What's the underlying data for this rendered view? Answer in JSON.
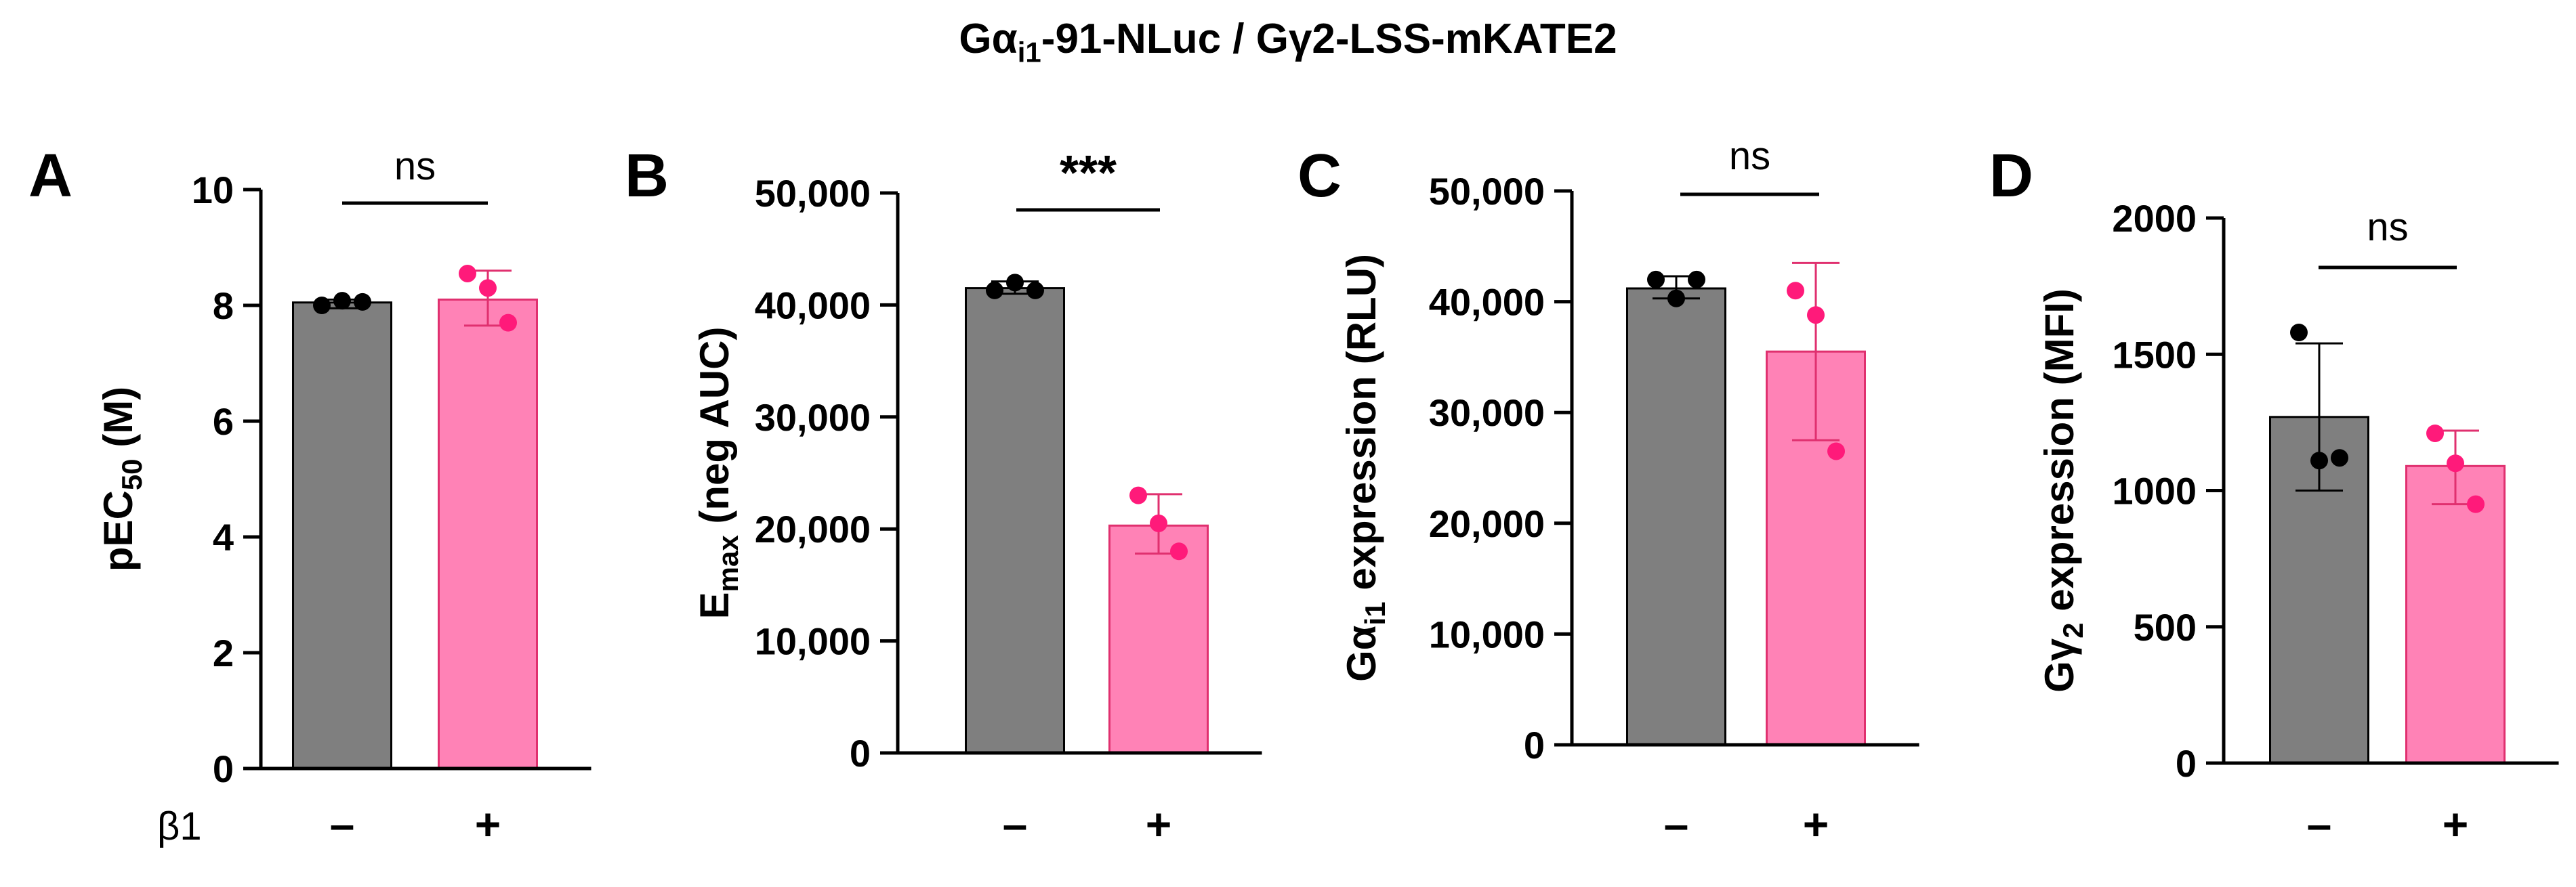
{
  "figure_title": {
    "prefix": "Gα",
    "sub": "i1",
    "suffix": "-91-NLuc / Gγ2-LSS-mKATE2"
  },
  "colors": {
    "minus": "#7f7f7f",
    "plus": "#ff82b6",
    "plus_edge": "#e0306f",
    "minus_dot": "#000000",
    "plus_dot": "#ff1a7a"
  },
  "row_label": "β1",
  "chart_data": [
    {
      "panel": "A",
      "type": "bar",
      "ylabel": {
        "main": "pEC",
        "sub": "50",
        "tail": " (M)"
      },
      "ylim": [
        0,
        10
      ],
      "ticks": [
        0,
        2,
        4,
        6,
        8,
        10
      ],
      "tick_labels": [
        "0",
        "2",
        "4",
        "6",
        "8",
        "10"
      ],
      "categories": [
        "–",
        "+"
      ],
      "series": [
        {
          "name": "–",
          "value": 8.05,
          "error": [
            7.95,
            8.1
          ],
          "points": [
            8.0,
            8.08,
            8.06
          ]
        },
        {
          "name": "+",
          "value": 8.1,
          "error": [
            7.65,
            8.6
          ],
          "points": [
            8.55,
            8.3,
            7.7
          ]
        }
      ],
      "significance": "ns"
    },
    {
      "panel": "B",
      "type": "bar",
      "ylabel": {
        "main": "E",
        "sub": "max",
        "tail": " (neg AUC)"
      },
      "ylim": [
        0,
        50000
      ],
      "ticks": [
        0,
        10000,
        20000,
        30000,
        40000,
        50000
      ],
      "tick_labels": [
        "0",
        "10,000",
        "20,000",
        "30,000",
        "40,000",
        "50,000"
      ],
      "categories": [
        "–",
        "+"
      ],
      "series": [
        {
          "name": "–",
          "value": 41500,
          "error": [
            41000,
            42100
          ],
          "points": [
            41300,
            42000,
            41300
          ]
        },
        {
          "name": "+",
          "value": 20300,
          "error": [
            17800,
            23100
          ],
          "points": [
            23000,
            20500,
            18000
          ]
        }
      ],
      "significance": "***"
    },
    {
      "panel": "C",
      "type": "bar",
      "ylabel": {
        "main": "Gα",
        "sub": "i1",
        "tail": " expression (RLU)"
      },
      "ylim": [
        0,
        50000
      ],
      "ticks": [
        0,
        10000,
        20000,
        30000,
        40000,
        50000
      ],
      "tick_labels": [
        "0",
        "10,000",
        "20,000",
        "30,000",
        "40,000",
        "50,000"
      ],
      "categories": [
        "–",
        "+"
      ],
      "series": [
        {
          "name": "–",
          "value": 41200,
          "error": [
            40300,
            42300
          ],
          "points": [
            42000,
            40300,
            42000
          ]
        },
        {
          "name": "+",
          "value": 35500,
          "error": [
            27500,
            43500
          ],
          "points": [
            41000,
            38800,
            26500
          ]
        }
      ],
      "significance": "ns"
    },
    {
      "panel": "D",
      "type": "bar",
      "ylabel": {
        "main": "Gγ",
        "sub": "2",
        "tail": " expression (MFI)"
      },
      "ylim": [
        0,
        2000
      ],
      "ticks": [
        0,
        500,
        1000,
        1500,
        2000
      ],
      "tick_labels": [
        "0",
        "500",
        "1000",
        "1500",
        "2000"
      ],
      "categories": [
        "–",
        "+"
      ],
      "series": [
        {
          "name": "–",
          "value": 1270,
          "error": [
            1000,
            1540
          ],
          "points": [
            1580,
            1110,
            1120
          ]
        },
        {
          "name": "+",
          "value": 1090,
          "error": [
            950,
            1220
          ],
          "points": [
            1210,
            1100,
            950
          ]
        }
      ],
      "significance": "ns"
    }
  ]
}
